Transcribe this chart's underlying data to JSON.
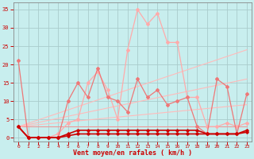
{
  "bg_color": "#c8eeee",
  "grid_color": "#aacccc",
  "x_label": "Vent moyen/en rafales ( km/h )",
  "x_label_color": "#cc0000",
  "y_ticks": [
    0,
    5,
    10,
    15,
    20,
    25,
    30,
    35
  ],
  "x_ticks": [
    0,
    1,
    2,
    3,
    4,
    5,
    6,
    7,
    8,
    9,
    10,
    11,
    12,
    13,
    14,
    15,
    16,
    17,
    18,
    19,
    20,
    21,
    22,
    23
  ],
  "xlim": [
    -0.5,
    23.5
  ],
  "ylim": [
    -1,
    37
  ],
  "series": [
    {
      "name": "trend_line1",
      "x": [
        0,
        23
      ],
      "y": [
        3,
        3
      ],
      "color": "#ee9999",
      "lw": 0.8,
      "marker": null,
      "ms": 0,
      "zorder": 2
    },
    {
      "name": "trend_line2",
      "x": [
        0,
        23
      ],
      "y": [
        3,
        9
      ],
      "color": "#ffbbbb",
      "lw": 0.8,
      "marker": null,
      "ms": 0,
      "zorder": 2
    },
    {
      "name": "trend_line3",
      "x": [
        0,
        23
      ],
      "y": [
        3,
        16
      ],
      "color": "#ffbbbb",
      "lw": 0.8,
      "marker": null,
      "ms": 0,
      "zorder": 2
    },
    {
      "name": "trend_line4",
      "x": [
        0,
        23
      ],
      "y": [
        3,
        24
      ],
      "color": "#ffbbbb",
      "lw": 0.8,
      "marker": null,
      "ms": 0,
      "zorder": 2
    },
    {
      "name": "light_zigzag",
      "x": [
        0,
        1,
        2,
        3,
        4,
        5,
        6,
        7,
        8,
        9,
        10,
        11,
        12,
        13,
        14,
        15,
        16,
        17,
        18,
        19,
        20,
        21,
        22,
        23
      ],
      "y": [
        3,
        0,
        0,
        0,
        1,
        4,
        5,
        15,
        18,
        13,
        5,
        24,
        35,
        31,
        34,
        26,
        26,
        11,
        11,
        3,
        3,
        4,
        3,
        4
      ],
      "color": "#ffaaaa",
      "lw": 0.9,
      "marker": "D",
      "ms": 2.0,
      "zorder": 3
    },
    {
      "name": "medium_zigzag",
      "x": [
        0,
        1,
        2,
        3,
        4,
        5,
        6,
        7,
        8,
        9,
        10,
        11,
        12,
        13,
        14,
        15,
        16,
        17,
        18,
        19,
        20,
        21,
        22,
        23
      ],
      "y": [
        21,
        0,
        0,
        0,
        0,
        10,
        15,
        11,
        19,
        11,
        10,
        7,
        16,
        11,
        13,
        9,
        10,
        11,
        3,
        1,
        16,
        14,
        1,
        12
      ],
      "color": "#ee7777",
      "lw": 0.9,
      "marker": "D",
      "ms": 2.0,
      "zorder": 4
    },
    {
      "name": "dark_flat1",
      "x": [
        0,
        1,
        2,
        3,
        4,
        5,
        6,
        7,
        8,
        9,
        10,
        11,
        12,
        13,
        14,
        15,
        16,
        17,
        18,
        19,
        20,
        21,
        22,
        23
      ],
      "y": [
        3,
        0,
        0,
        0,
        0,
        1,
        2,
        2,
        2,
        2,
        2,
        2,
        2,
        2,
        2,
        2,
        2,
        2,
        2,
        1,
        1,
        1,
        1,
        2
      ],
      "color": "#cc0000",
      "lw": 1.2,
      "marker": "D",
      "ms": 1.8,
      "zorder": 5
    },
    {
      "name": "dark_flat2",
      "x": [
        0,
        1,
        2,
        3,
        4,
        5,
        6,
        7,
        8,
        9,
        10,
        11,
        12,
        13,
        14,
        15,
        16,
        17,
        18,
        19,
        20,
        21,
        22,
        23
      ],
      "y": [
        3,
        0,
        0,
        0,
        0,
        0.5,
        1,
        1,
        1,
        1,
        1,
        1,
        1,
        1,
        1,
        1,
        1,
        1,
        1,
        1,
        1,
        1,
        1,
        1.5
      ],
      "color": "#cc0000",
      "lw": 1.2,
      "marker": "D",
      "ms": 1.8,
      "zorder": 5
    }
  ],
  "tick_color": "#cc0000",
  "spine_color": "#888888"
}
